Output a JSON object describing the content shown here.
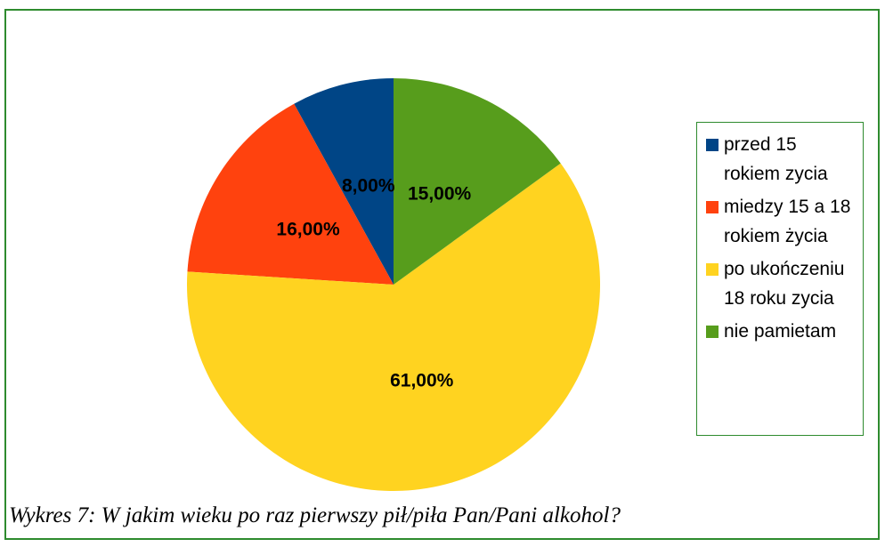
{
  "chart_data": {
    "type": "pie",
    "categories": [
      "przed 15 rokiem zycia",
      "miedzy 15 a 18 rokiem życia",
      "po ukończeniu 18 roku zycia",
      "nie pamietam"
    ],
    "values": [
      8,
      16,
      61,
      15
    ],
    "value_labels": [
      "8,00%",
      "16,00%",
      "61,00%",
      "15,00%"
    ],
    "colors": [
      "#004586",
      "#ff420e",
      "#ffd320",
      "#579d1c"
    ],
    "legend": "right"
  },
  "caption": "Wykres 7: W jakim wieku po raz pierwszy pił/piła Pan/Pani alkohol?"
}
